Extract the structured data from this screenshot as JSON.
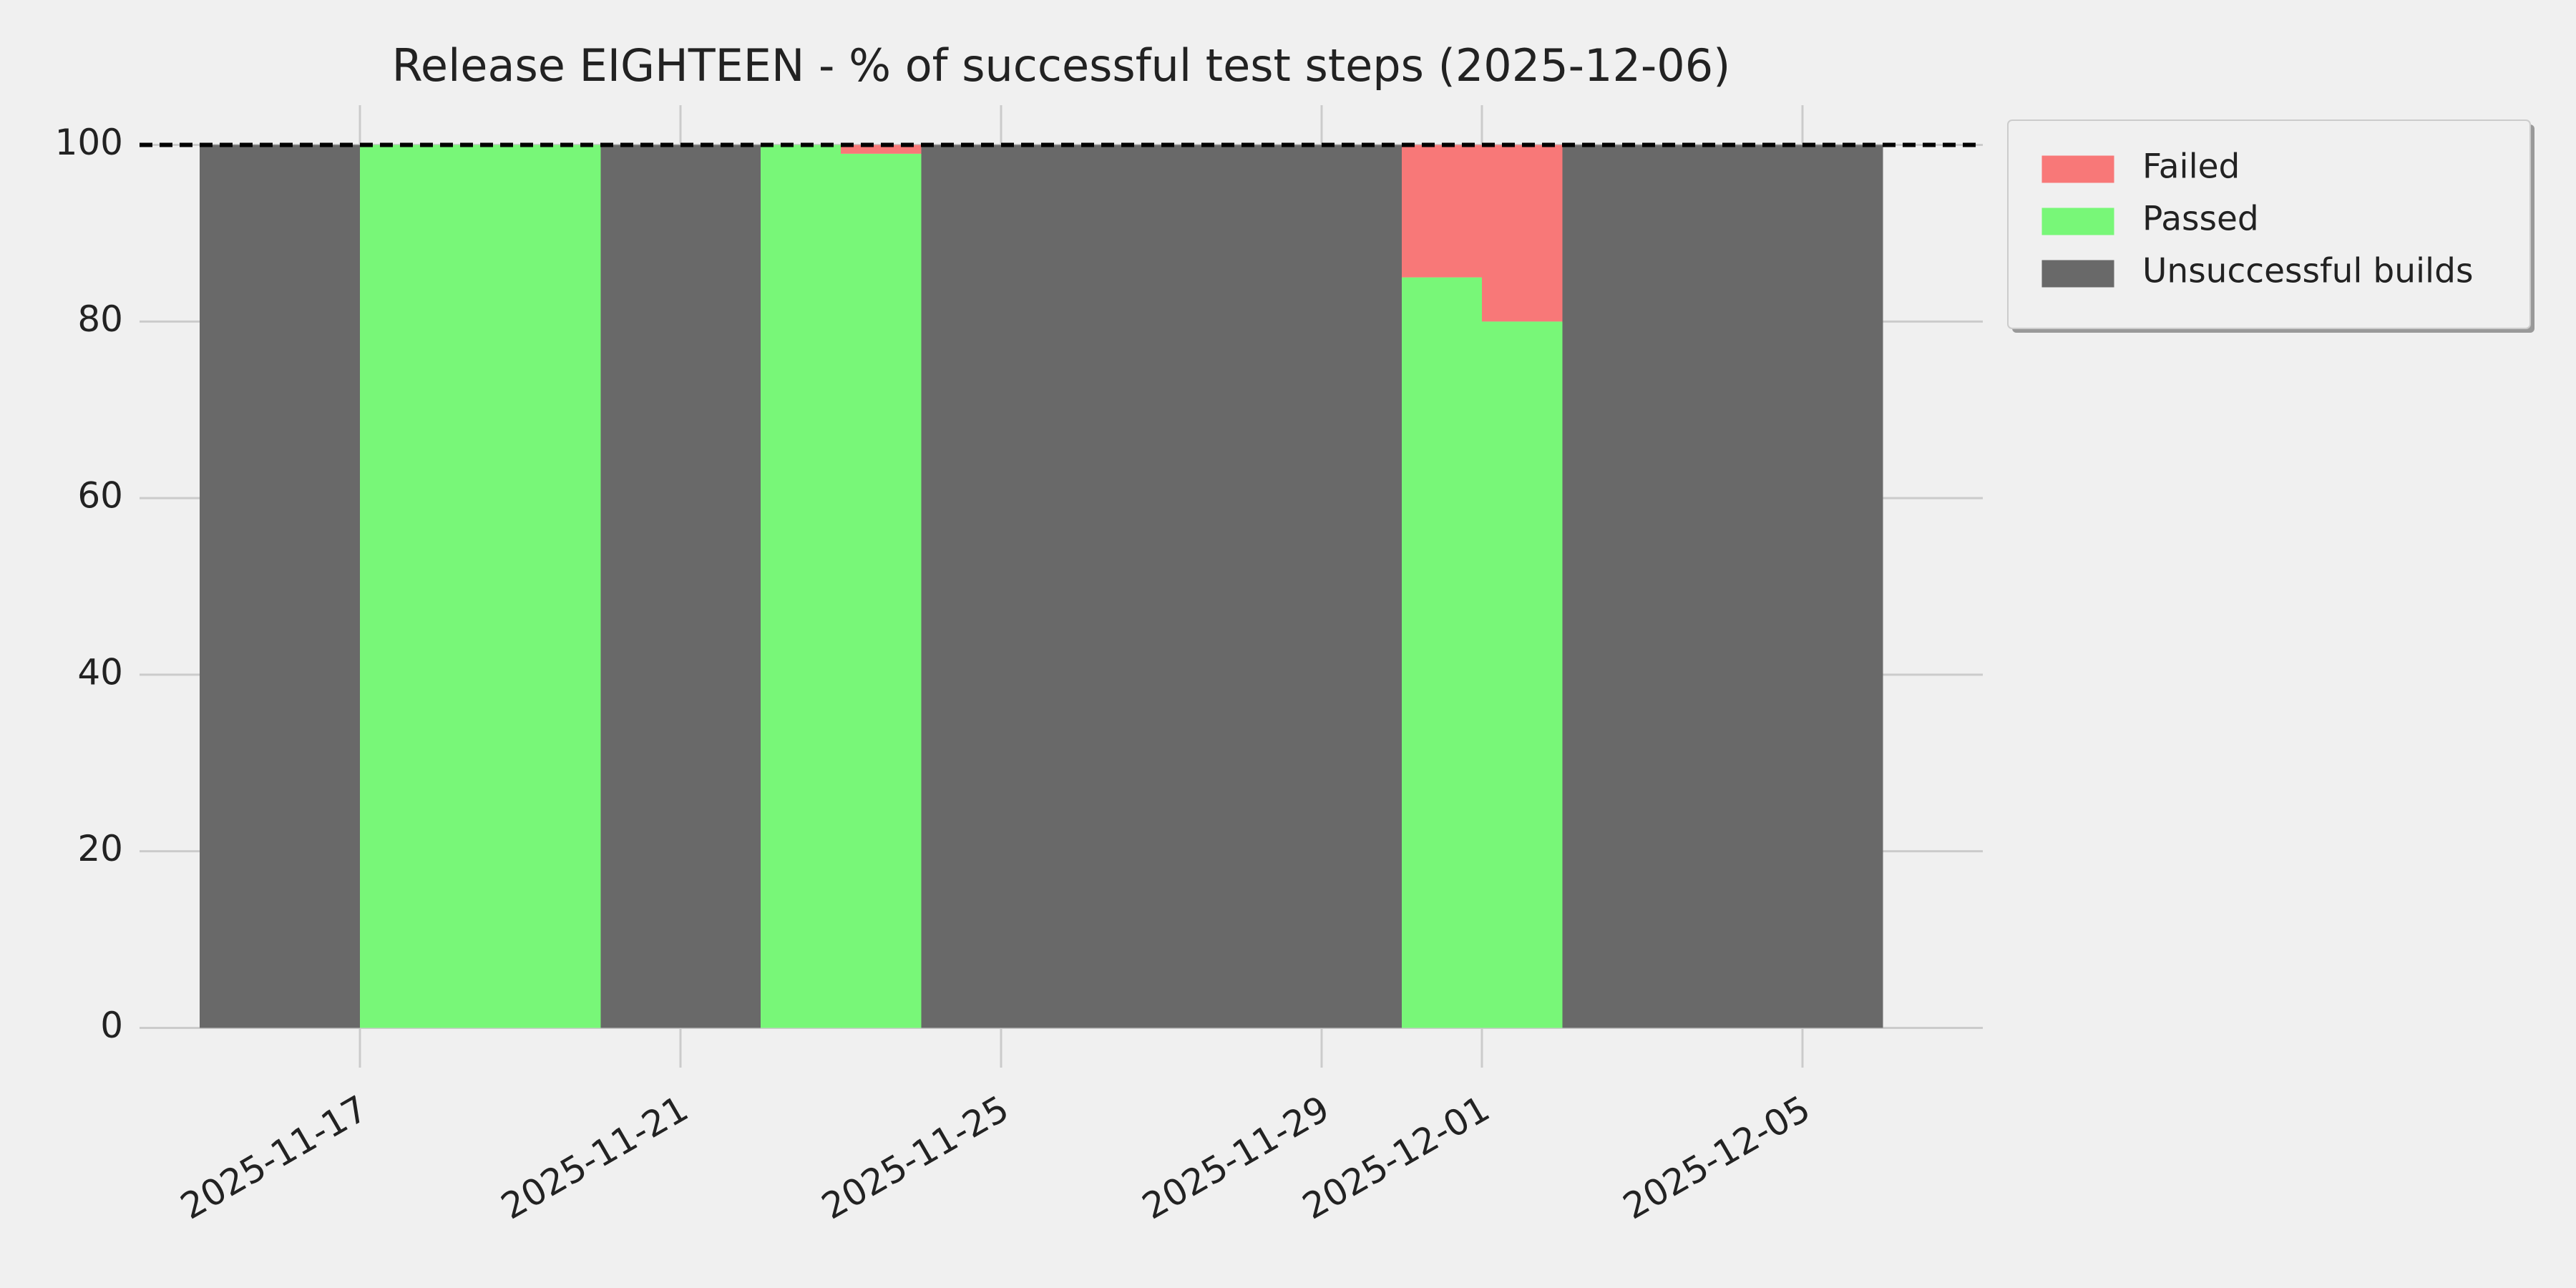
{
  "chart_data": {
    "type": "stacked-step-area",
    "title": "Release EIGHTEEN - % of successful test steps (2025-12-06)",
    "x": [
      "2025-11-15",
      "2025-11-16",
      "2025-11-17",
      "2025-11-18",
      "2025-11-19",
      "2025-11-20",
      "2025-11-21",
      "2025-11-22",
      "2025-11-23",
      "2025-11-24",
      "2025-11-25",
      "2025-11-26",
      "2025-11-27",
      "2025-11-28",
      "2025-11-29",
      "2025-11-30",
      "2025-12-01",
      "2025-12-02",
      "2025-12-03",
      "2025-12-04",
      "2025-12-05"
    ],
    "series": [
      {
        "name": "Failed",
        "color": "#f87878",
        "values": [
          0,
          0,
          0,
          0,
          0,
          0,
          0,
          0,
          1,
          0,
          0,
          0,
          0,
          0,
          0,
          15,
          20,
          0,
          0,
          0,
          0
        ]
      },
      {
        "name": "Passed",
        "color": "#78f778",
        "values": [
          0,
          0,
          100,
          100,
          100,
          0,
          0,
          100,
          99,
          0,
          0,
          0,
          0,
          0,
          0,
          85,
          80,
          0,
          0,
          0,
          0
        ]
      },
      {
        "name": "Unsuccessful builds",
        "color": "#696969",
        "values": [
          100,
          100,
          0,
          0,
          0,
          100,
          100,
          0,
          0,
          100,
          100,
          100,
          100,
          100,
          100,
          0,
          0,
          100,
          100,
          100,
          100
        ]
      }
    ],
    "xlim": [
      "2025-11-14",
      "2025-12-07"
    ],
    "xticks": [
      "2025-11-17",
      "2025-11-21",
      "2025-11-25",
      "2025-11-29",
      "2025-12-01",
      "2025-12-05"
    ],
    "ylim": [
      -4.5,
      104.5
    ],
    "yticks": [
      0,
      20,
      40,
      60,
      80,
      100
    ],
    "hline": 100,
    "grid": true,
    "legend": "outside-upper-right"
  }
}
